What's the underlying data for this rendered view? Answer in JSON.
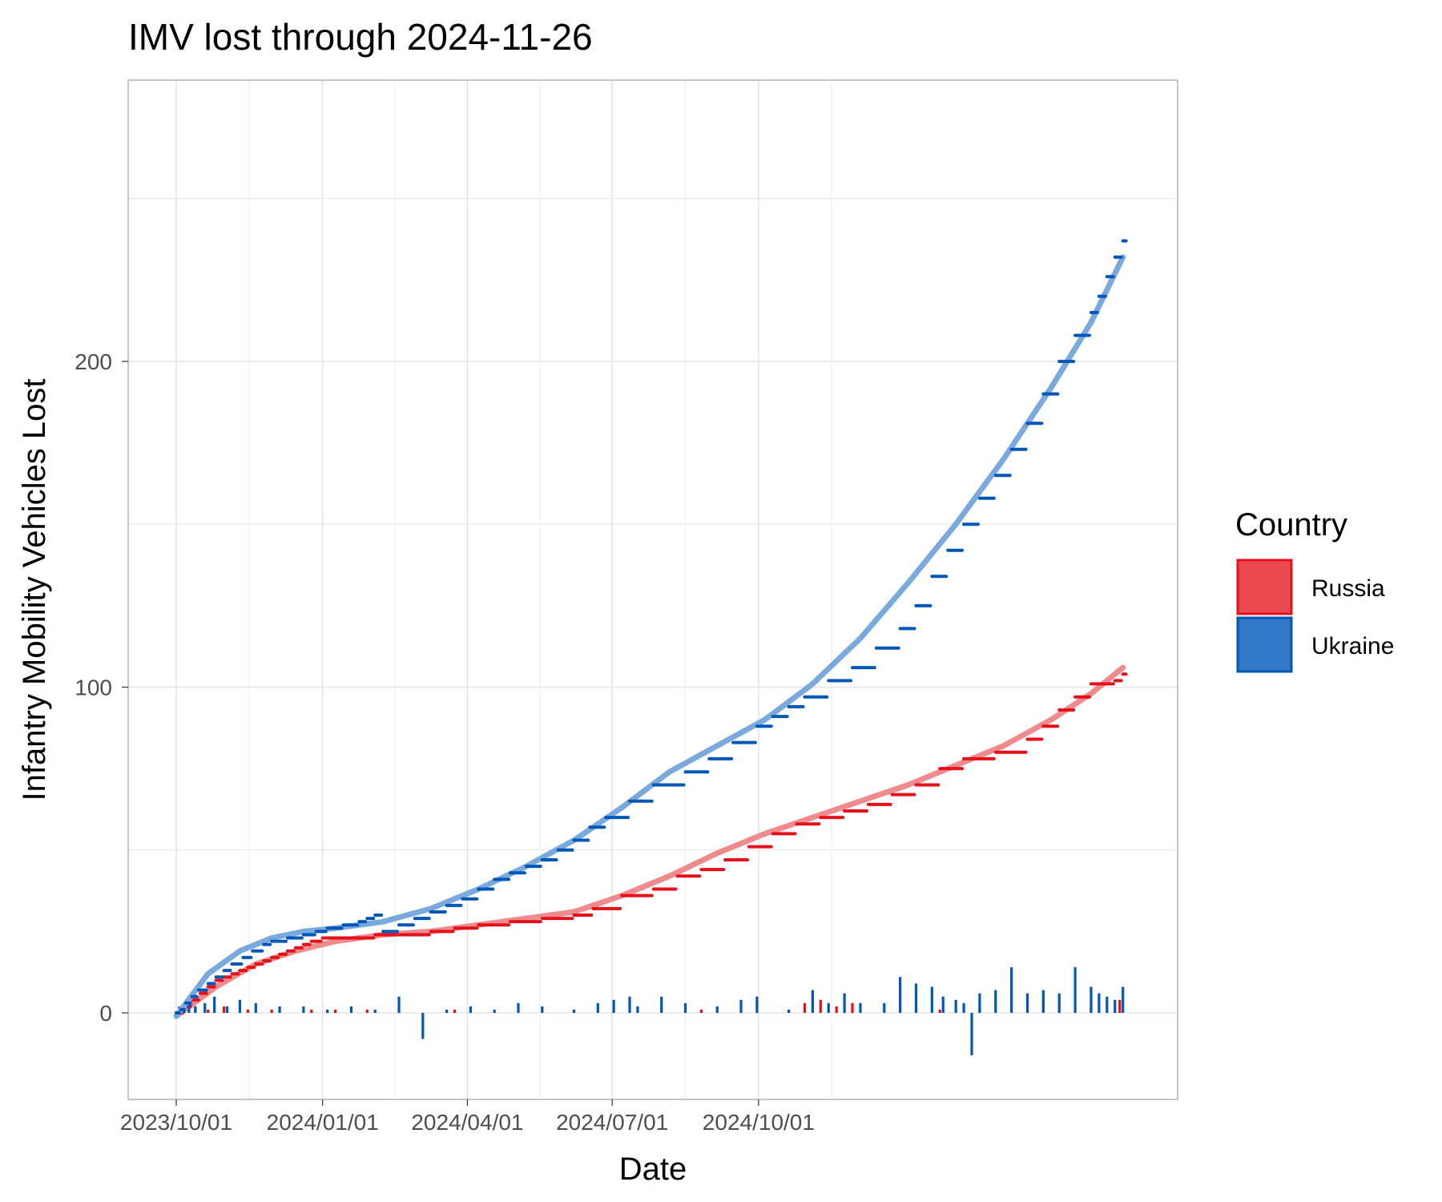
{
  "chart_data": {
    "type": "line",
    "title": "IMV lost through 2024-11-26",
    "xlabel": "Date",
    "ylabel": "Infantry Mobility Vehicles Lost",
    "x_ticks": [
      "2023/10/01",
      "2024/01/01",
      "2024/04/01",
      "2024/07/01",
      "2024/10/01"
    ],
    "y_ticks": [
      0,
      100,
      200
    ],
    "ylim": [
      -25,
      285
    ],
    "legend": {
      "title": "Country",
      "position": "right",
      "entries": [
        {
          "name": "Russia",
          "color": "#e4111b",
          "fill": "#e84a50"
        },
        {
          "name": "Ukraine",
          "color": "#0057b8",
          "fill": "#3478c8"
        }
      ]
    },
    "series": [
      {
        "name": "Russia",
        "color": "#e4111b",
        "trend_color": "#ef8a8d",
        "note": "cumulative losses by date (days since 2023-10-01)",
        "cumulative": [
          [
            0,
            0
          ],
          [
            5,
            2
          ],
          [
            10,
            4
          ],
          [
            15,
            6
          ],
          [
            20,
            8
          ],
          [
            25,
            10
          ],
          [
            30,
            11
          ],
          [
            35,
            12
          ],
          [
            40,
            13
          ],
          [
            45,
            14
          ],
          [
            50,
            15
          ],
          [
            55,
            16
          ],
          [
            60,
            17
          ],
          [
            65,
            18
          ],
          [
            70,
            19
          ],
          [
            75,
            20
          ],
          [
            80,
            21
          ],
          [
            85,
            22
          ],
          [
            92,
            23
          ],
          [
            110,
            23
          ],
          [
            125,
            24
          ],
          [
            140,
            24
          ],
          [
            160,
            25
          ],
          [
            175,
            26
          ],
          [
            190,
            27
          ],
          [
            210,
            28
          ],
          [
            230,
            29
          ],
          [
            250,
            30
          ],
          [
            262,
            32
          ],
          [
            280,
            36
          ],
          [
            300,
            38
          ],
          [
            315,
            42
          ],
          [
            330,
            44
          ],
          [
            345,
            47
          ],
          [
            360,
            51
          ],
          [
            375,
            55
          ],
          [
            390,
            58
          ],
          [
            405,
            60
          ],
          [
            420,
            62
          ],
          [
            435,
            64
          ],
          [
            450,
            67
          ],
          [
            465,
            70
          ],
          [
            480,
            75
          ],
          [
            495,
            78
          ],
          [
            515,
            80
          ],
          [
            535,
            84
          ],
          [
            545,
            88
          ],
          [
            555,
            93
          ],
          [
            565,
            97
          ],
          [
            575,
            101
          ],
          [
            590,
            102
          ],
          [
            595,
            104
          ]
        ],
        "trend": [
          [
            0,
            -1
          ],
          [
            25,
            8
          ],
          [
            50,
            15
          ],
          [
            75,
            19
          ],
          [
            100,
            22
          ],
          [
            130,
            24
          ],
          [
            160,
            25
          ],
          [
            190,
            27
          ],
          [
            220,
            29
          ],
          [
            250,
            31
          ],
          [
            280,
            36
          ],
          [
            310,
            42
          ],
          [
            340,
            49
          ],
          [
            370,
            55
          ],
          [
            400,
            60
          ],
          [
            430,
            65
          ],
          [
            460,
            70
          ],
          [
            490,
            76
          ],
          [
            520,
            82
          ],
          [
            550,
            90
          ],
          [
            575,
            98
          ],
          [
            595,
            106
          ]
        ],
        "daily": [
          [
            5,
            1
          ],
          [
            12,
            2
          ],
          [
            20,
            1
          ],
          [
            30,
            2
          ],
          [
            45,
            1
          ],
          [
            60,
            1
          ],
          [
            85,
            1
          ],
          [
            100,
            1
          ],
          [
            120,
            1
          ],
          [
            175,
            1
          ],
          [
            250,
            1
          ],
          [
            330,
            1
          ],
          [
            385,
            1
          ],
          [
            395,
            3
          ],
          [
            405,
            4
          ],
          [
            415,
            2
          ],
          [
            425,
            3
          ],
          [
            480,
            1
          ],
          [
            495,
            2
          ],
          [
            505,
            2
          ],
          [
            545,
            4
          ],
          [
            575,
            2
          ],
          [
            593,
            4
          ]
        ]
      },
      {
        "name": "Ukraine",
        "color": "#0057b8",
        "trend_color": "#7aa9de",
        "note": "cumulative losses by date (days since 2023-10-01)",
        "cumulative": [
          [
            0,
            0
          ],
          [
            3,
            1
          ],
          [
            6,
            3
          ],
          [
            10,
            5
          ],
          [
            14,
            7
          ],
          [
            20,
            9
          ],
          [
            25,
            11
          ],
          [
            30,
            13
          ],
          [
            35,
            15
          ],
          [
            42,
            17
          ],
          [
            48,
            19
          ],
          [
            55,
            21
          ],
          [
            60,
            22
          ],
          [
            70,
            23
          ],
          [
            80,
            24
          ],
          [
            88,
            25
          ],
          [
            95,
            26
          ],
          [
            105,
            27
          ],
          [
            115,
            28
          ],
          [
            120,
            29
          ],
          [
            125,
            30
          ],
          [
            130,
            25
          ],
          [
            140,
            27
          ],
          [
            150,
            29
          ],
          [
            160,
            31
          ],
          [
            170,
            33
          ],
          [
            180,
            35
          ],
          [
            190,
            38
          ],
          [
            200,
            41
          ],
          [
            210,
            43
          ],
          [
            220,
            45
          ],
          [
            230,
            47
          ],
          [
            240,
            50
          ],
          [
            250,
            53
          ],
          [
            260,
            57
          ],
          [
            270,
            60
          ],
          [
            285,
            65
          ],
          [
            300,
            70
          ],
          [
            320,
            74
          ],
          [
            335,
            78
          ],
          [
            350,
            83
          ],
          [
            365,
            88
          ],
          [
            375,
            91
          ],
          [
            385,
            94
          ],
          [
            395,
            97
          ],
          [
            410,
            102
          ],
          [
            425,
            106
          ],
          [
            440,
            112
          ],
          [
            455,
            118
          ],
          [
            465,
            125
          ],
          [
            475,
            134
          ],
          [
            485,
            142
          ],
          [
            495,
            150
          ],
          [
            505,
            158
          ],
          [
            515,
            165
          ],
          [
            525,
            173
          ],
          [
            535,
            181
          ],
          [
            545,
            190
          ],
          [
            555,
            200
          ],
          [
            565,
            208
          ],
          [
            575,
            215
          ],
          [
            580,
            220
          ],
          [
            585,
            226
          ],
          [
            590,
            232
          ],
          [
            595,
            237
          ]
        ],
        "trend": [
          [
            0,
            -1
          ],
          [
            20,
            12
          ],
          [
            40,
            19
          ],
          [
            60,
            23
          ],
          [
            80,
            25
          ],
          [
            100,
            26
          ],
          [
            130,
            28
          ],
          [
            160,
            32
          ],
          [
            190,
            38
          ],
          [
            220,
            45
          ],
          [
            250,
            53
          ],
          [
            280,
            63
          ],
          [
            310,
            74
          ],
          [
            340,
            82
          ],
          [
            370,
            90
          ],
          [
            400,
            101
          ],
          [
            430,
            115
          ],
          [
            460,
            132
          ],
          [
            490,
            150
          ],
          [
            520,
            170
          ],
          [
            550,
            192
          ],
          [
            575,
            212
          ],
          [
            595,
            232
          ]
        ],
        "daily": [
          [
            2,
            2
          ],
          [
            5,
            3
          ],
          [
            8,
            4
          ],
          [
            12,
            2
          ],
          [
            18,
            3
          ],
          [
            24,
            5
          ],
          [
            32,
            2
          ],
          [
            40,
            4
          ],
          [
            50,
            3
          ],
          [
            65,
            2
          ],
          [
            80,
            2
          ],
          [
            95,
            1
          ],
          [
            110,
            2
          ],
          [
            125,
            1
          ],
          [
            140,
            5
          ],
          [
            155,
            -8
          ],
          [
            170,
            1
          ],
          [
            185,
            2
          ],
          [
            200,
            1
          ],
          [
            215,
            3
          ],
          [
            230,
            2
          ],
          [
            250,
            1
          ],
          [
            265,
            3
          ],
          [
            275,
            4
          ],
          [
            285,
            5
          ],
          [
            290,
            2
          ],
          [
            305,
            5
          ],
          [
            320,
            3
          ],
          [
            340,
            2
          ],
          [
            355,
            4
          ],
          [
            365,
            5
          ],
          [
            385,
            1
          ],
          [
            400,
            7
          ],
          [
            410,
            3
          ],
          [
            420,
            6
          ],
          [
            430,
            3
          ],
          [
            445,
            3
          ],
          [
            455,
            11
          ],
          [
            465,
            9
          ],
          [
            475,
            8
          ],
          [
            482,
            5
          ],
          [
            490,
            4
          ],
          [
            495,
            3
          ],
          [
            500,
            -13
          ],
          [
            505,
            6
          ],
          [
            515,
            7
          ],
          [
            525,
            14
          ],
          [
            535,
            6
          ],
          [
            545,
            7
          ],
          [
            555,
            6
          ],
          [
            565,
            14
          ],
          [
            575,
            8
          ],
          [
            580,
            6
          ],
          [
            585,
            5
          ],
          [
            590,
            4
          ],
          [
            595,
            8
          ]
        ]
      }
    ]
  }
}
